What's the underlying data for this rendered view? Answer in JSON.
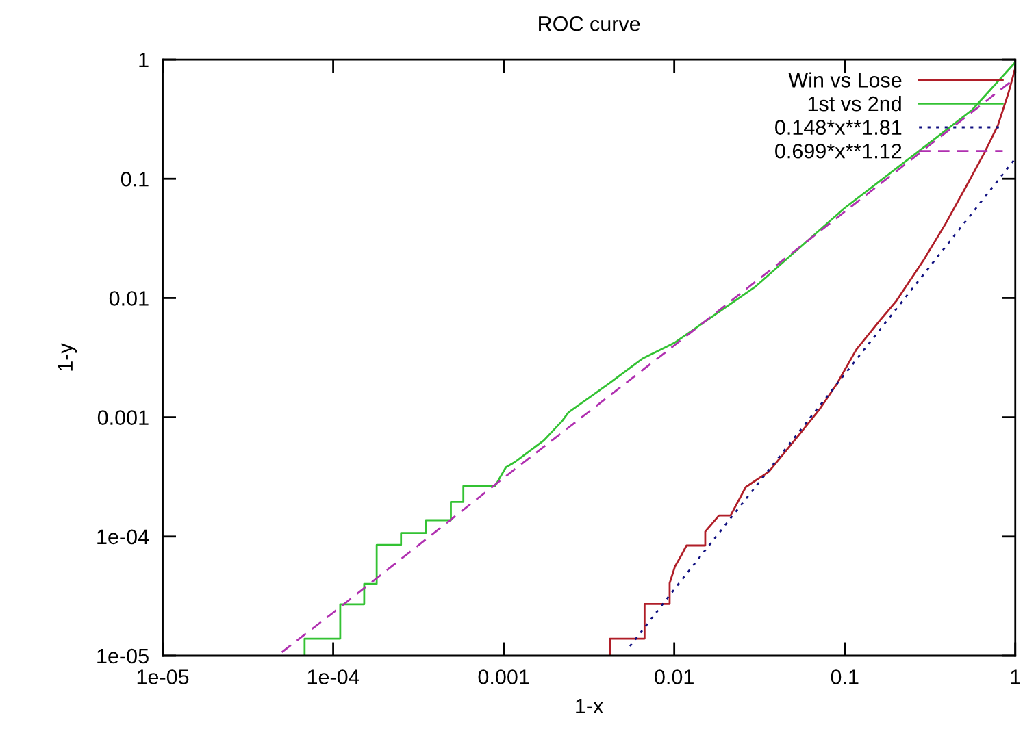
{
  "chart_data": {
    "type": "line",
    "title": "ROC curve",
    "xlabel": "1-x",
    "ylabel": "1-y",
    "log": "xy",
    "xlim": [
      1e-05,
      1
    ],
    "ylim": [
      1e-05,
      1
    ],
    "xticks": [
      {
        "value": 1e-05,
        "label": "1e-05"
      },
      {
        "value": 0.0001,
        "label": "1e-04"
      },
      {
        "value": 0.001,
        "label": "0.001"
      },
      {
        "value": 0.01,
        "label": "0.01"
      },
      {
        "value": 0.1,
        "label": "0.1"
      },
      1
    ],
    "yticks": [
      {
        "value": 1e-05,
        "label": "1e-05"
      },
      {
        "value": 0.0001,
        "label": "1e-04"
      },
      {
        "value": 0.001,
        "label": "0.001"
      },
      {
        "value": 0.01,
        "label": "0.01"
      },
      {
        "value": 0.1,
        "label": "0.1"
      },
      1
    ],
    "grid": false,
    "legend": "top right",
    "series": [
      {
        "name": "Win vs Lose",
        "color": "#b01e28",
        "line_style": "solid",
        "x": [
          0.0042,
          0.0042,
          0.0067,
          0.0067,
          0.0094,
          0.0094,
          0.0101,
          0.0111,
          0.0118,
          0.0152,
          0.0152,
          0.0183,
          0.0214,
          0.0263,
          0.0359,
          0.053,
          0.0716,
          0.0898,
          0.117,
          0.158,
          0.2,
          0.29,
          0.39,
          0.53,
          0.66,
          0.79,
          0.91,
          1
        ],
        "values": [
          1e-05,
          1.39e-05,
          1.39e-05,
          2.72e-05,
          2.72e-05,
          4.06e-05,
          5.6e-05,
          7.1e-05,
          8.4e-05,
          8.4e-05,
          0.00011,
          0.00015,
          0.00015,
          0.00026,
          0.00035,
          0.00069,
          0.00118,
          0.0019,
          0.0037,
          0.0063,
          0.0094,
          0.0208,
          0.042,
          0.093,
          0.166,
          0.28,
          0.52,
          0.85
        ]
      },
      {
        "name": "1st vs 2nd",
        "color": "#33c233",
        "line_style": "solid",
        "x": [
          6.8e-05,
          6.8e-05,
          0.00011,
          0.00011,
          0.000152,
          0.000152,
          0.00018,
          0.00018,
          0.00025,
          0.00025,
          0.00035,
          0.00035,
          0.00049,
          0.00049,
          0.00058,
          0.00058,
          0.00089,
          0.00103,
          0.00116,
          0.00172,
          0.0022,
          0.0024,
          0.0041,
          0.0065,
          0.01,
          0.03,
          0.1,
          0.3,
          0.56,
          1
        ],
        "values": [
          1e-05,
          1.39e-05,
          1.39e-05,
          2.7e-05,
          2.7e-05,
          4e-05,
          4e-05,
          8.5e-05,
          8.5e-05,
          0.000107,
          0.000107,
          0.000137,
          0.000137,
          0.000195,
          0.000195,
          0.000265,
          0.000265,
          0.00038,
          0.00042,
          0.00064,
          0.00093,
          0.0011,
          0.0019,
          0.0031,
          0.0042,
          0.0125,
          0.057,
          0.19,
          0.38,
          0.95
        ]
      },
      {
        "name": "0.148*x**1.81",
        "color": "#101080",
        "line_style": "dotted",
        "x": [
          0.0055,
          0.01,
          0.1,
          1
        ],
        "values": [
          1.2e-05,
          3.6e-05,
          0.0023,
          0.148
        ]
      },
      {
        "name": "0.699*x**1.12",
        "color": "#b030b0",
        "line_style": "dashed",
        "x": [
          5e-05,
          0.0001,
          0.001,
          0.01,
          0.1,
          1
        ],
        "values": [
          1.07e-05,
          2.3e-05,
          0.00031,
          0.004,
          0.053,
          0.699
        ]
      }
    ]
  }
}
